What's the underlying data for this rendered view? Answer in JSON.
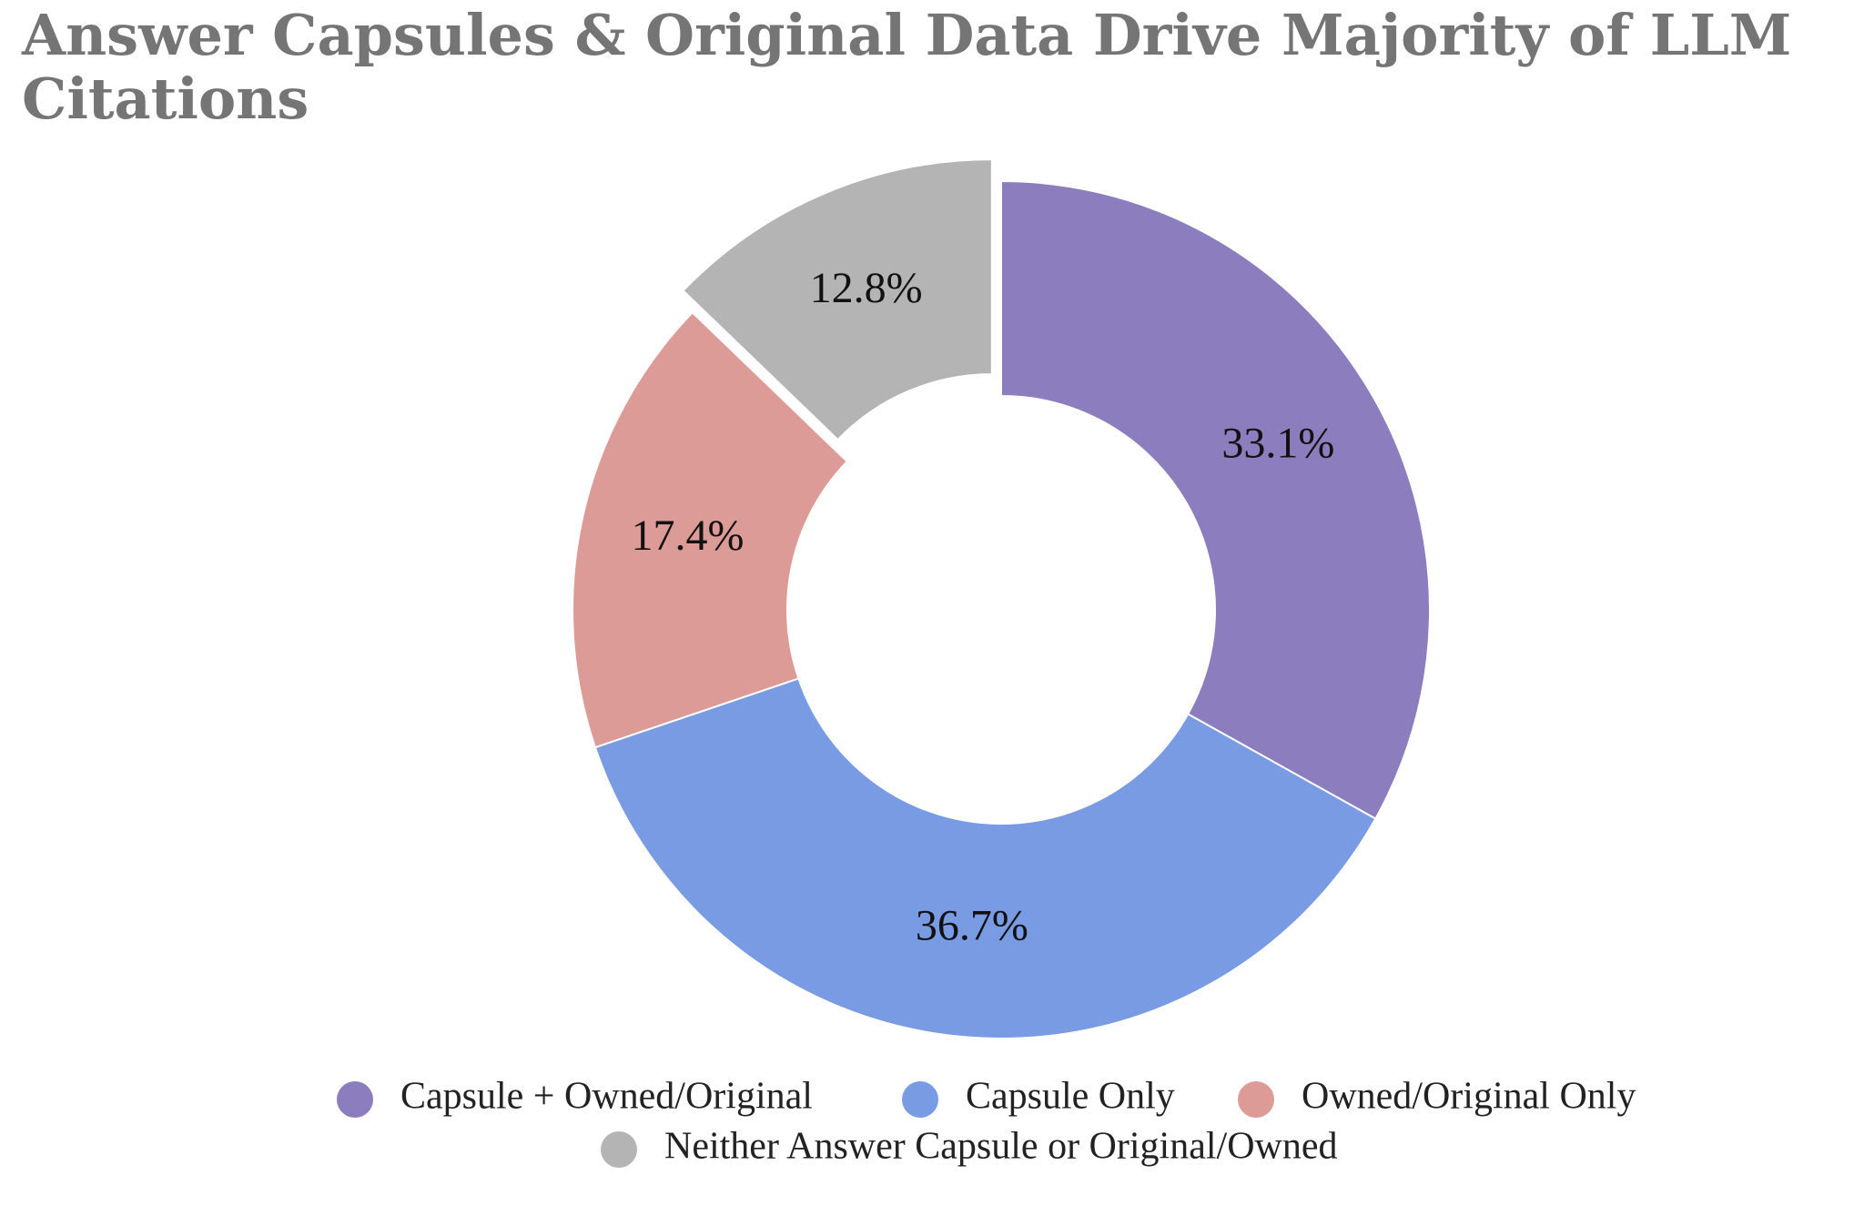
{
  "chart_data": {
    "type": "donut",
    "title": "Answer Capsules & Original Data Drive Majority of LLM Citations",
    "categories": [
      "Capsule + Owned/Original",
      "Capsule Only",
      "Owned/Original Only",
      "Neither Answer Capsule or Original/Owned"
    ],
    "values": [
      33.1,
      36.7,
      17.4,
      12.8
    ],
    "value_labels": [
      "33.1%",
      "36.7%",
      "17.4%",
      "12.8%"
    ],
    "colors": [
      "#8c7dbf",
      "#789be3",
      "#dd9b98",
      "#b4b4b4"
    ],
    "exploded": [
      false,
      false,
      false,
      true
    ]
  }
}
